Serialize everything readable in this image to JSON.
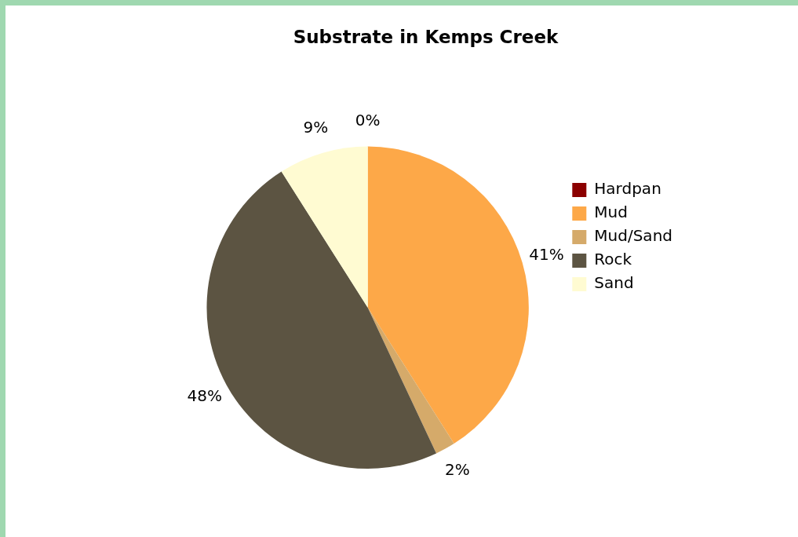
{
  "chart_data": {
    "type": "pie",
    "title": "Substrate in Kemps Creek",
    "categories": [
      "Hardpan",
      "Mud",
      "Mud/Sand",
      "Rock",
      "Sand"
    ],
    "values": [
      0,
      41,
      2,
      48,
      9
    ],
    "value_labels": [
      "0%",
      "41%",
      "2%",
      "48%",
      "9%"
    ],
    "colors": [
      "#8b0000",
      "#fda848",
      "#d5aa6a",
      "#5c5442",
      "#fffbd2"
    ],
    "legend": "right"
  }
}
